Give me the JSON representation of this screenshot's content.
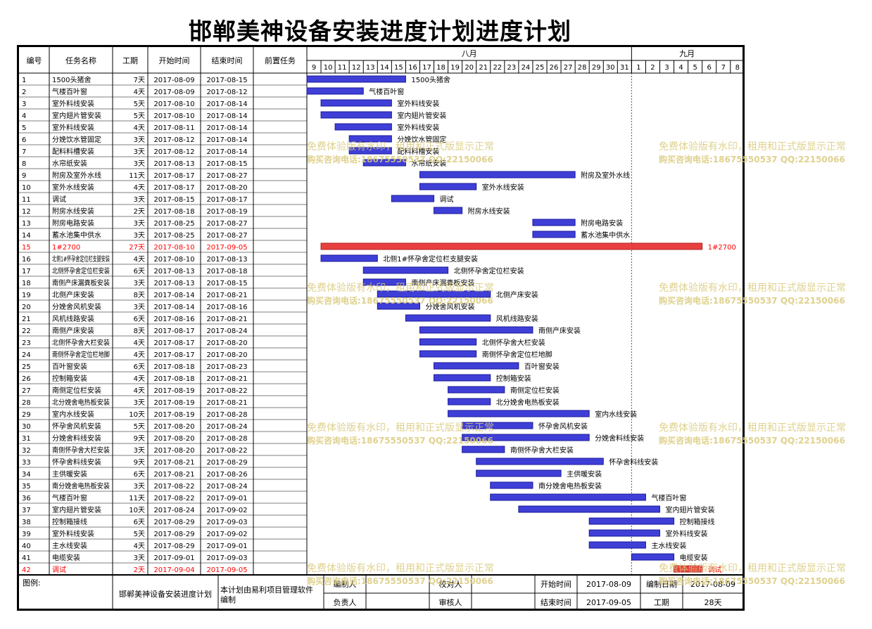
{
  "title": "邯郸美神设备安装进度计划进度计划",
  "table_headers": {
    "id": "编号",
    "name": "任务名称",
    "duration": "工期",
    "start": "开始时间",
    "end": "结束时间",
    "predecessor": "前置任务"
  },
  "months": [
    {
      "label": "八月"
    },
    {
      "label": "九月"
    }
  ],
  "days": [
    "9",
    "10",
    "11",
    "12",
    "13",
    "14",
    "15",
    "16",
    "17",
    "18",
    "19",
    "20",
    "21",
    "22",
    "23",
    "24",
    "25",
    "26",
    "27",
    "28",
    "29",
    "30",
    "31",
    "1",
    "2",
    "3",
    "4",
    "5",
    "6",
    "7",
    "8"
  ],
  "colors": {
    "normal_bar": "#3f3fd8",
    "critical_bar": "#e84040",
    "critical_text": "#ff0000",
    "watermark": "#d9c97a"
  },
  "chart_data": {
    "type": "gantt",
    "tasks": [
      {
        "id": "1",
        "name": "1500头猪舍",
        "duration": "7天",
        "start": "2017-08-09",
        "end": "2017-08-15",
        "label": "1500头猪舍",
        "critical": false
      },
      {
        "id": "2",
        "name": "气楼百叶窗",
        "duration": "4天",
        "start": "2017-08-09",
        "end": "2017-08-12",
        "label": "气楼百叶窗",
        "critical": false
      },
      {
        "id": "3",
        "name": "室外料线安装",
        "duration": "5天",
        "start": "2017-08-10",
        "end": "2017-08-14",
        "label": "室外料线安装",
        "critical": false
      },
      {
        "id": "4",
        "name": "室内翅片管安装",
        "duration": "5天",
        "start": "2017-08-10",
        "end": "2017-08-14",
        "label": "室内翅片管安装",
        "critical": false
      },
      {
        "id": "5",
        "name": "室外料线安装",
        "duration": "4天",
        "start": "2017-08-11",
        "end": "2017-08-14",
        "label": "室外料线安装",
        "critical": false
      },
      {
        "id": "6",
        "name": "分娩饮水管固定",
        "duration": "3天",
        "start": "2017-08-12",
        "end": "2017-08-14",
        "label": "分娩饮水管固定",
        "critical": false
      },
      {
        "id": "7",
        "name": "配料料槽安装",
        "duration": "3天",
        "start": "2017-08-12",
        "end": "2017-08-14",
        "label": "配料料槽安装",
        "critical": false
      },
      {
        "id": "8",
        "name": "水帘纸安装",
        "duration": "3天",
        "start": "2017-08-13",
        "end": "2017-08-15",
        "label": "水帘纸安装",
        "critical": false
      },
      {
        "id": "9",
        "name": "附房及室外水线",
        "duration": "11天",
        "start": "2017-08-17",
        "end": "2017-08-27",
        "label": "附房及室外水线",
        "critical": false
      },
      {
        "id": "10",
        "name": "室外水线安装",
        "duration": "4天",
        "start": "2017-08-17",
        "end": "2017-08-20",
        "label": "室外水线安装",
        "critical": false
      },
      {
        "id": "11",
        "name": "调试",
        "duration": "3天",
        "start": "2017-08-15",
        "end": "2017-08-17",
        "label": "调试",
        "critical": false
      },
      {
        "id": "12",
        "name": "附房水线安装",
        "duration": "2天",
        "start": "2017-08-18",
        "end": "2017-08-19",
        "label": "附房水线安装",
        "critical": false
      },
      {
        "id": "13",
        "name": "附房电路安装",
        "duration": "3天",
        "start": "2017-08-25",
        "end": "2017-08-27",
        "label": "附房电路安装",
        "critical": false
      },
      {
        "id": "14",
        "name": "蓄水池集中供水",
        "duration": "3天",
        "start": "2017-08-25",
        "end": "2017-08-27",
        "label": "蓄水池集中供水",
        "critical": false
      },
      {
        "id": "15",
        "name": "1#2700",
        "duration": "27天",
        "start": "2017-08-10",
        "end": "2017-09-05",
        "label": "1#2700",
        "critical": true
      },
      {
        "id": "16",
        "name": "北侧1#怀孕舍定位栏支腿安装",
        "duration": "4天",
        "start": "2017-08-10",
        "end": "2017-08-13",
        "label": "北侧1#怀孕舍定位栏支腿安装",
        "critical": false
      },
      {
        "id": "17",
        "name": "北侧怀孕舍定位栏安装",
        "duration": "6天",
        "start": "2017-08-13",
        "end": "2017-08-18",
        "label": "北侧怀孕舍定位栏安装",
        "critical": false
      },
      {
        "id": "18",
        "name": "南侧产床漏粪板安装",
        "duration": "3天",
        "start": "2017-08-13",
        "end": "2017-08-15",
        "label": "南侧产床漏粪板安装",
        "critical": false
      },
      {
        "id": "19",
        "name": "北侧产床安装",
        "duration": "8天",
        "start": "2017-08-14",
        "end": "2017-08-21",
        "label": "北侧产床安装",
        "critical": false
      },
      {
        "id": "20",
        "name": "分娩舍风机安装",
        "duration": "3天",
        "start": "2017-08-14",
        "end": "2017-08-16",
        "label": "分娩舍风机安装",
        "critical": false
      },
      {
        "id": "21",
        "name": "风机线路安装",
        "duration": "6天",
        "start": "2017-08-16",
        "end": "2017-08-21",
        "label": "风机线路安装",
        "critical": false
      },
      {
        "id": "22",
        "name": "南侧产床安装",
        "duration": "8天",
        "start": "2017-08-17",
        "end": "2017-08-24",
        "label": "南侧产床安装",
        "critical": false
      },
      {
        "id": "23",
        "name": "北侧怀孕舍大栏安装",
        "duration": "4天",
        "start": "2017-08-17",
        "end": "2017-08-20",
        "label": "北侧怀孕舍大栏安装",
        "critical": false
      },
      {
        "id": "24",
        "name": "南侧怀孕舍定位栏地脚",
        "duration": "4天",
        "start": "2017-08-17",
        "end": "2017-08-20",
        "label": "南侧怀孕舍定位栏地脚",
        "critical": false
      },
      {
        "id": "25",
        "name": "百叶窗安装",
        "duration": "6天",
        "start": "2017-08-18",
        "end": "2017-08-23",
        "label": "百叶窗安装",
        "critical": false
      },
      {
        "id": "26",
        "name": "控制箱安装",
        "duration": "4天",
        "start": "2017-08-18",
        "end": "2017-08-21",
        "label": "控制箱安装",
        "critical": false
      },
      {
        "id": "27",
        "name": "南侧定位栏安装",
        "duration": "4天",
        "start": "2017-08-19",
        "end": "2017-08-22",
        "label": "南侧定位栏安装",
        "critical": false
      },
      {
        "id": "28",
        "name": "北分娩舍电热板安装",
        "duration": "3天",
        "start": "2017-08-19",
        "end": "2017-08-21",
        "label": "北分娩舍电热板安装",
        "critical": false
      },
      {
        "id": "29",
        "name": "室内水线安装",
        "duration": "10天",
        "start": "2017-08-19",
        "end": "2017-08-28",
        "label": "室内水线安装",
        "critical": false
      },
      {
        "id": "30",
        "name": "怀孕舍风机安装",
        "duration": "5天",
        "start": "2017-08-20",
        "end": "2017-08-24",
        "label": "怀孕舍风机安装",
        "critical": false
      },
      {
        "id": "31",
        "name": "分娩舍料线安装",
        "duration": "9天",
        "start": "2017-08-20",
        "end": "2017-08-28",
        "label": "分娩舍料线安装",
        "critical": false
      },
      {
        "id": "32",
        "name": "南侧怀孕舍大栏安装",
        "duration": "3天",
        "start": "2017-08-20",
        "end": "2017-08-22",
        "label": "南侧怀孕舍大栏安装",
        "critical": false
      },
      {
        "id": "33",
        "name": "怀孕舍料线安装",
        "duration": "9天",
        "start": "2017-08-21",
        "end": "2017-08-29",
        "label": "怀孕舍料线安装",
        "critical": false
      },
      {
        "id": "34",
        "name": "主供暖安装",
        "duration": "6天",
        "start": "2017-08-21",
        "end": "2017-08-26",
        "label": "主供暖安装",
        "critical": false
      },
      {
        "id": "35",
        "name": "南分娩舍电热板安装",
        "duration": "3天",
        "start": "2017-08-22",
        "end": "2017-08-24",
        "label": "南分娩舍电热板安装",
        "critical": false
      },
      {
        "id": "36",
        "name": "气楼百叶窗",
        "duration": "11天",
        "start": "2017-08-22",
        "end": "2017-09-01",
        "label": "气楼百叶窗",
        "critical": false
      },
      {
        "id": "37",
        "name": "室内翅片管安装",
        "duration": "10天",
        "start": "2017-08-24",
        "end": "2017-09-02",
        "label": "室内翅片管安装",
        "critical": false
      },
      {
        "id": "38",
        "name": "控制箱接线",
        "duration": "6天",
        "start": "2017-08-29",
        "end": "2017-09-03",
        "label": "控制箱接线",
        "critical": false
      },
      {
        "id": "39",
        "name": "室外料线安装",
        "duration": "5天",
        "start": "2017-08-29",
        "end": "2017-09-02",
        "label": "室外料线安装",
        "critical": false
      },
      {
        "id": "40",
        "name": "主水线安装",
        "duration": "4天",
        "start": "2017-08-29",
        "end": "2017-09-01",
        "label": "主水线安装",
        "critical": false
      },
      {
        "id": "41",
        "name": "电缆安装",
        "duration": "3天",
        "start": "2017-09-01",
        "end": "2017-09-03",
        "label": "电缆安装",
        "critical": false
      },
      {
        "id": "42",
        "name": "调试",
        "duration": "2天",
        "start": "2017-09-04",
        "end": "2017-09-05",
        "label": "调试",
        "critical": true
      }
    ]
  },
  "watermarks": [
    {
      "line1": "免费体验版有水印，租用和正式版显示正常",
      "line2": "购买咨询电话:18675550537 QQ:22150066"
    }
  ],
  "footer": {
    "legend_label": "图例:",
    "plan_title": "邯郸美神设备安装进度计划",
    "software_note": "本计划由易利项目管理软件编制",
    "compiler_label": "编制人",
    "checker_label": "校对人",
    "owner_label": "负责人",
    "reviewer_label": "审核人",
    "start_label": "开始时间",
    "start_value": "2017-08-09",
    "date_label": "编制日期",
    "date_value": "2017-08-09",
    "end_label": "结束时间",
    "end_value": "2017-09-05",
    "period_label": "工期",
    "period_value": "28天"
  }
}
